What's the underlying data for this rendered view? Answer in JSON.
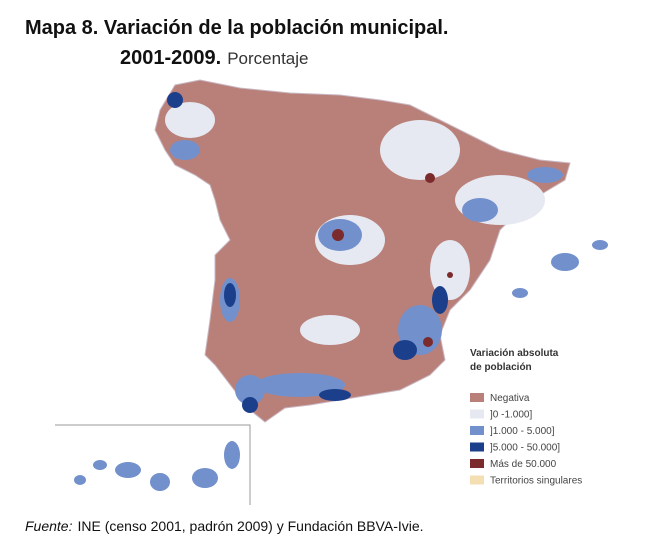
{
  "header": {
    "title": "Mapa 8. Variación de la población municipal.",
    "subtitle": "2001-2009.",
    "unit": "Porcentaje"
  },
  "legend": {
    "title_lines": [
      "Variación absoluta",
      "de población"
    ],
    "items": [
      {
        "label": "Negativa",
        "color": "#b98079"
      },
      {
        "label": "]0 -1.000]",
        "color": "#e6e8f2"
      },
      {
        "label": "]1.000 - 5.000]",
        "color": "#7290cc"
      },
      {
        "label": "]5.000 - 50.000]",
        "color": "#1c3f8c"
      },
      {
        "label": "Más de 50.000",
        "color": "#7b2b2b"
      },
      {
        "label": "Territorios singulares",
        "color": "#f5dfb2"
      }
    ]
  },
  "source": {
    "label": "Fuente:",
    "text": "INE (censo 2001, padrón 2009) y Fundación BBVA-Ivie."
  }
}
